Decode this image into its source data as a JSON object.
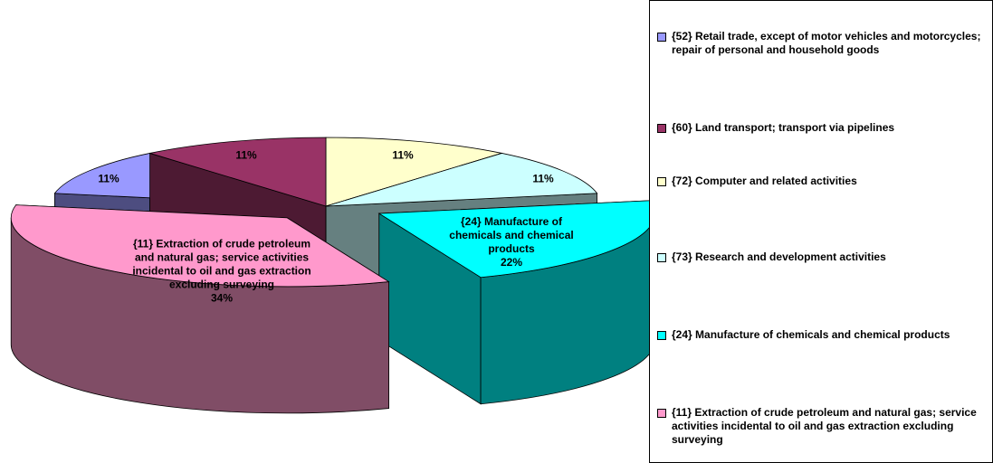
{
  "chart_data": {
    "type": "pie3d",
    "categories": [
      "{72} Computer and related activities",
      "{73} Research and development activities",
      "{24} Manufacture of chemicals and chemical products",
      "{11} Extraction of crude petroleum and natural gas; service activities incidental to oil and gas extraction excluding surveying",
      "{52} Retail trade, except of motor vehicles and motorcycles; repair of personal and household goods",
      "{60} Land transport; transport via pipelines"
    ],
    "values": [
      11,
      11,
      22,
      34,
      11,
      11
    ],
    "value_labels": [
      "11%",
      "11%",
      "22%",
      "34%",
      "11%",
      "11%"
    ],
    "colors": [
      "#FFFFCC",
      "#CCFFFF",
      "#00FFFF",
      "#FF99CC",
      "#9999FF",
      "#993366"
    ],
    "legend_order": [
      4,
      5,
      0,
      1,
      2,
      3
    ]
  }
}
